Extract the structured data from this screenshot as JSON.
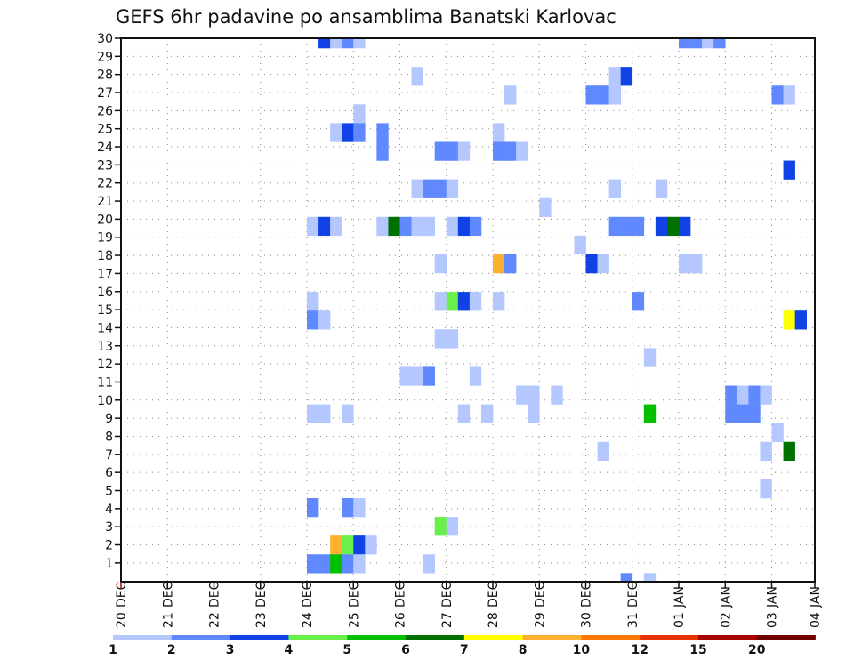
{
  "chart_data": {
    "type": "heatmap",
    "title": "GEFS 6hr padavine po ansamblima Banatski Karlovac",
    "xlabel": "",
    "ylabel": "",
    "x_unit": "days since 20 DEC 00Z",
    "xlim": [
      0,
      14.93
    ],
    "ylim": [
      -0.04,
      30
    ],
    "y_tick_labels": [
      "1",
      "2",
      "3",
      "4",
      "5",
      "6",
      "7",
      "8",
      "9",
      "10",
      "11",
      "12",
      "13",
      "14",
      "15",
      "16",
      "17",
      "18",
      "19",
      "20",
      "21",
      "22",
      "23",
      "24",
      "25",
      "26",
      "27",
      "28",
      "29",
      "30"
    ],
    "x_ticks": [
      {
        "day": "20",
        "month": "DEC"
      },
      {
        "day": "21",
        "month": "DEC"
      },
      {
        "day": "22",
        "month": "DEC"
      },
      {
        "day": "23",
        "month": "DEC"
      },
      {
        "day": "24",
        "month": "DEC"
      },
      {
        "day": "25",
        "month": "DEC"
      },
      {
        "day": "26",
        "month": "DEC"
      },
      {
        "day": "27",
        "month": "DEC"
      },
      {
        "day": "28",
        "month": "DEC"
      },
      {
        "day": "29",
        "month": "DEC"
      },
      {
        "day": "30",
        "month": "DEC"
      },
      {
        "day": "31",
        "month": "DEC"
      },
      {
        "day": "01",
        "month": "JAN"
      },
      {
        "day": "02",
        "month": "JAN"
      },
      {
        "day": "03",
        "month": "JAN"
      },
      {
        "day": "04",
        "month": "JAN"
      }
    ],
    "grid": true,
    "legend": {
      "placement": "bottom",
      "levels": [
        "1",
        "2",
        "3",
        "4",
        "5",
        "6",
        "7",
        "8",
        "10",
        "12",
        "15",
        "20"
      ],
      "colors": [
        "#b4c8ff",
        "#6089ff",
        "#1042e6",
        "#6af04a",
        "#00c000",
        "#007000",
        "#ffff00",
        "#ffb030",
        "#ff7800",
        "#e83400",
        "#a80000",
        "#700000"
      ]
    },
    "cell_duration_days": 0.25,
    "cell_fields": [
      "member",
      "t",
      "value"
    ],
    "cells": [
      [
        30,
        4.25,
        3
      ],
      [
        30,
        4.5,
        1
      ],
      [
        30,
        4.75,
        2
      ],
      [
        30,
        5.0,
        1
      ],
      [
        30,
        12.0,
        2
      ],
      [
        30,
        12.25,
        2
      ],
      [
        30,
        12.5,
        1
      ],
      [
        30,
        12.75,
        2
      ],
      [
        28,
        6.25,
        1
      ],
      [
        28,
        10.5,
        1
      ],
      [
        28,
        10.75,
        3
      ],
      [
        27,
        8.25,
        1
      ],
      [
        27,
        10.0,
        2
      ],
      [
        27,
        10.25,
        2
      ],
      [
        27,
        10.5,
        1
      ],
      [
        27,
        14.0,
        2
      ],
      [
        27,
        14.25,
        1
      ],
      [
        26,
        5.0,
        1
      ],
      [
        25,
        4.5,
        1
      ],
      [
        25,
        4.75,
        3
      ],
      [
        25,
        5.0,
        2
      ],
      [
        25,
        5.5,
        2
      ],
      [
        25,
        8.0,
        1
      ],
      [
        24,
        5.5,
        2
      ],
      [
        24,
        6.75,
        2
      ],
      [
        24,
        7.0,
        2
      ],
      [
        24,
        7.25,
        1
      ],
      [
        24,
        8.0,
        2
      ],
      [
        24,
        8.25,
        2
      ],
      [
        24,
        8.5,
        1
      ],
      [
        23,
        14.25,
        3
      ],
      [
        22,
        6.25,
        1
      ],
      [
        22,
        6.5,
        2
      ],
      [
        22,
        6.75,
        2
      ],
      [
        22,
        7.0,
        1
      ],
      [
        22,
        10.5,
        1
      ],
      [
        22,
        11.5,
        1
      ],
      [
        21,
        9.0,
        1
      ],
      [
        20,
        4.0,
        1
      ],
      [
        20,
        4.25,
        3
      ],
      [
        20,
        4.5,
        1
      ],
      [
        20,
        5.5,
        1
      ],
      [
        20,
        5.75,
        6
      ],
      [
        20,
        6.0,
        2
      ],
      [
        20,
        6.25,
        1
      ],
      [
        20,
        6.5,
        1
      ],
      [
        20,
        7.0,
        1
      ],
      [
        20,
        7.25,
        3
      ],
      [
        20,
        7.5,
        2
      ],
      [
        20,
        10.5,
        2
      ],
      [
        20,
        10.75,
        2
      ],
      [
        20,
        11.0,
        2
      ],
      [
        20,
        11.5,
        3
      ],
      [
        20,
        11.75,
        6
      ],
      [
        20,
        12.0,
        3
      ],
      [
        19,
        9.75,
        1
      ],
      [
        18,
        6.75,
        1
      ],
      [
        18,
        8.0,
        8
      ],
      [
        18,
        8.25,
        2
      ],
      [
        18,
        10.0,
        3
      ],
      [
        18,
        10.25,
        1
      ],
      [
        18,
        12.0,
        1
      ],
      [
        18,
        12.25,
        1
      ],
      [
        16,
        4.0,
        1
      ],
      [
        16,
        6.75,
        1
      ],
      [
        16,
        7.0,
        4
      ],
      [
        16,
        7.25,
        3
      ],
      [
        16,
        7.5,
        1
      ],
      [
        16,
        8.0,
        1
      ],
      [
        16,
        11.0,
        2
      ],
      [
        15,
        4.0,
        2
      ],
      [
        15,
        4.25,
        1
      ],
      [
        15,
        14.25,
        7
      ],
      [
        15,
        14.5,
        3
      ],
      [
        14,
        6.75,
        1
      ],
      [
        14,
        7.0,
        1
      ],
      [
        13,
        11.25,
        1
      ],
      [
        12,
        6.0,
        1
      ],
      [
        12,
        6.25,
        1
      ],
      [
        12,
        6.5,
        2
      ],
      [
        12,
        7.5,
        1
      ],
      [
        11,
        8.5,
        1
      ],
      [
        11,
        8.75,
        1
      ],
      [
        11,
        9.25,
        1
      ],
      [
        11,
        13.0,
        2
      ],
      [
        11,
        13.25,
        1
      ],
      [
        11,
        13.5,
        2
      ],
      [
        11,
        13.75,
        1
      ],
      [
        10,
        4.0,
        1
      ],
      [
        10,
        4.25,
        1
      ],
      [
        10,
        4.75,
        1
      ],
      [
        10,
        7.25,
        1
      ],
      [
        10,
        7.75,
        1
      ],
      [
        10,
        8.75,
        1
      ],
      [
        10,
        11.25,
        5
      ],
      [
        10,
        13.0,
        2
      ],
      [
        10,
        13.25,
        2
      ],
      [
        10,
        13.5,
        2
      ],
      [
        9,
        14.0,
        1
      ],
      [
        8,
        10.25,
        1
      ],
      [
        8,
        13.75,
        1
      ],
      [
        8,
        14.25,
        6
      ],
      [
        6,
        13.75,
        1
      ],
      [
        5,
        4.0,
        2
      ],
      [
        5,
        4.75,
        2
      ],
      [
        5,
        5.0,
        1
      ],
      [
        4,
        6.75,
        4
      ],
      [
        4,
        7.0,
        1
      ],
      [
        3,
        4.5,
        8
      ],
      [
        3,
        4.75,
        4
      ],
      [
        3,
        5.0,
        3
      ],
      [
        3,
        5.25,
        1
      ],
      [
        2,
        4.0,
        2
      ],
      [
        2,
        4.25,
        2
      ],
      [
        2,
        4.5,
        5
      ],
      [
        2,
        4.75,
        2
      ],
      [
        2,
        5.0,
        1
      ],
      [
        2,
        6.5,
        1
      ],
      [
        1,
        10.75,
        2
      ],
      [
        1,
        11.25,
        1
      ]
    ]
  }
}
